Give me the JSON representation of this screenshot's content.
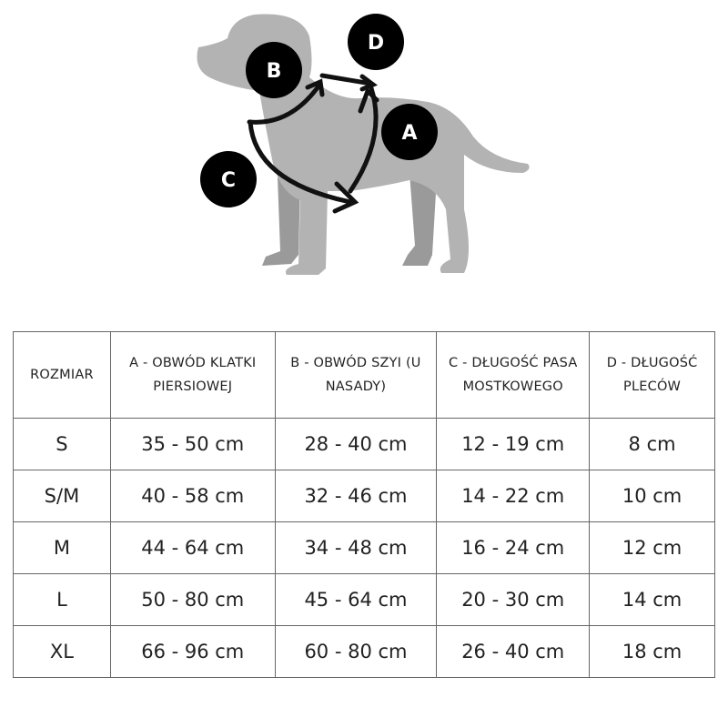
{
  "illustration": {
    "labels": {
      "a": "A",
      "b": "B",
      "c": "C",
      "d": "D"
    },
    "colors": {
      "dog": "#b3b3b3",
      "dog_far_legs": "#9a9a9a",
      "badge": "#000000",
      "arrow": "#111111"
    }
  },
  "table": {
    "headers": [
      "ROZMIAR",
      "A - OBWÓD KLATKI PIERSIOWEJ",
      "B - OBWÓD SZYI (U NASADY)",
      "C - DŁUGOŚĆ PASA MOSTKOWEGO",
      "D - DŁUGOŚĆ PLECÓW"
    ],
    "rows": [
      [
        "S",
        "35 - 50 cm",
        "28 - 40 cm",
        "12 - 19 cm",
        "8 cm"
      ],
      [
        "S/M",
        "40 - 58 cm",
        "32 - 46 cm",
        "14 - 22 cm",
        "10 cm"
      ],
      [
        "M",
        "44 - 64 cm",
        "34 - 48 cm",
        "16 - 24 cm",
        "12 cm"
      ],
      [
        "L",
        "50 - 80 cm",
        "45 - 64 cm",
        "20 - 30 cm",
        "14 cm"
      ],
      [
        "XL",
        "66 - 96 cm",
        "60 - 80 cm",
        "26 - 40 cm",
        "18 cm"
      ]
    ]
  }
}
